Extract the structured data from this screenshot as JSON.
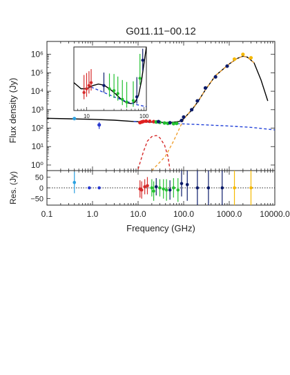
{
  "colors": {
    "frame": "#222222",
    "model": "#000000",
    "synchrotron": "#1f3fd8",
    "dust": "#f0a030",
    "free_free": "#d62a2a",
    "mwa": "#2aa0e0",
    "gleam": "#2a3ad0",
    "mid": "#e02020",
    "green": "#22c030",
    "navy": "#0a1a6a",
    "gold": "#f5b800"
  },
  "chart_data": [
    {
      "type": "scatter",
      "panel": "main",
      "title": "G011.11−00.12",
      "xlabel": "",
      "ylabel": "Flux density (Jy)",
      "xscale": "log",
      "yscale": "log",
      "xlim": [
        0.1,
        10000
      ],
      "ylim": [
        0.5,
        5000000
      ],
      "ytick_labels": [
        "10⁰",
        "10¹",
        "10²",
        "10³",
        "10⁴",
        "10⁵",
        "10⁶"
      ],
      "ytick_values": [
        1,
        10,
        100,
        1000,
        10000,
        100000,
        1000000
      ],
      "grid": false,
      "series": [
        {
          "group": "low_freq",
          "color": "#2aa0e0",
          "points": [
            {
              "x": 0.4,
              "y": 330,
              "yerr": 0
            }
          ]
        },
        {
          "group": "gleam",
          "color": "#2a3ad0",
          "points": [
            {
              "x": 1.4,
              "y": 150,
              "yerr": 60
            }
          ]
        },
        {
          "group": "mid",
          "color": "#e02020",
          "points": [
            {
              "x": 11,
              "y": 200
            },
            {
              "x": 12,
              "y": 215
            },
            {
              "x": 13,
              "y": 230
            },
            {
              "x": 15,
              "y": 240
            },
            {
              "x": 18,
              "y": 235
            },
            {
              "x": 22,
              "y": 225
            }
          ]
        },
        {
          "group": "green",
          "color": "#22c030",
          "points": [
            {
              "x": 25,
              "y": 215
            },
            {
              "x": 30,
              "y": 205
            },
            {
              "x": 38,
              "y": 190
            },
            {
              "x": 45,
              "y": 180
            },
            {
              "x": 60,
              "y": 175
            },
            {
              "x": 70,
              "y": 180
            }
          ]
        },
        {
          "group": "navy",
          "color": "#0a1a6a",
          "points": [
            {
              "x": 28,
              "y": 225
            },
            {
              "x": 50,
              "y": 195
            },
            {
              "x": 90,
              "y": 260
            },
            {
              "x": 100,
              "y": 400
            },
            {
              "x": 150,
              "y": 1000
            },
            {
              "x": 200,
              "y": 3000
            },
            {
              "x": 300,
              "y": 15000
            },
            {
              "x": 500,
              "y": 60000
            },
            {
              "x": 900,
              "y": 230000
            }
          ]
        },
        {
          "group": "gold",
          "color": "#f5b800",
          "points": [
            {
              "x": 1300,
              "y": 550000
            },
            {
              "x": 2000,
              "y": 1000000
            },
            {
              "x": 3000,
              "y": 650000
            }
          ]
        }
      ],
      "models": [
        {
          "name": "total",
          "color": "#000000",
          "dash": "solid",
          "points": [
            [
              0.1,
              340
            ],
            [
              0.3,
              320
            ],
            [
              1,
              300
            ],
            [
              3,
              270
            ],
            [
              8,
              230
            ],
            [
              15,
              215
            ],
            [
              30,
              205
            ],
            [
              50,
              200
            ],
            [
              80,
              230
            ],
            [
              100,
              320
            ],
            [
              150,
              950
            ],
            [
              200,
              2500
            ],
            [
              300,
              12000
            ],
            [
              500,
              70000
            ],
            [
              1000,
              300000
            ],
            [
              1500,
              600000
            ],
            [
              2000,
              800000
            ],
            [
              2500,
              700000
            ],
            [
              3500,
              350000
            ],
            [
              5000,
              40000
            ],
            [
              7000,
              3000
            ]
          ]
        },
        {
          "name": "synchrotron",
          "color": "#1f3fd8",
          "dash": "dashed",
          "points": [
            [
              8,
              230
            ],
            [
              30,
              190
            ],
            [
              100,
              170
            ],
            [
              300,
              150
            ],
            [
              1000,
              130
            ],
            [
              3000,
              110
            ],
            [
              10000,
              80
            ]
          ]
        },
        {
          "name": "dust",
          "color": "#f0a030",
          "dash": "dashed",
          "points": [
            [
              20,
              0.5
            ],
            [
              40,
              3
            ],
            [
              60,
              20
            ],
            [
              100,
              300
            ],
            [
              200,
              2500
            ],
            [
              300,
              12000
            ],
            [
              500,
              70000
            ],
            [
              1000,
              300000
            ],
            [
              1500,
              600000
            ],
            [
              2000,
              800000
            ],
            [
              2500,
              700000
            ],
            [
              3500,
              350000
            ]
          ]
        },
        {
          "name": "free_free",
          "color": "#d62a2a",
          "dash": "dashed",
          "points": [
            [
              10,
              0.6
            ],
            [
              13,
              5
            ],
            [
              16,
              20
            ],
            [
              20,
              35
            ],
            [
              25,
              40
            ],
            [
              30,
              30
            ],
            [
              38,
              12
            ],
            [
              45,
              3
            ],
            [
              50,
              0.6
            ]
          ]
        }
      ]
    },
    {
      "type": "scatter",
      "panel": "inset",
      "xscale": "log",
      "yscale": "log",
      "xlim": [
        6,
        110
      ],
      "ylim": [
        130,
        1500
      ],
      "xtick_labels": [
        "10",
        "100"
      ],
      "xtick_values": [
        10,
        100
      ],
      "points": [
        {
          "x": 9,
          "y": 260,
          "yerr_lo": 60,
          "yerr_hi": 250,
          "color": "#d62a2a"
        },
        {
          "x": 10,
          "y": 300,
          "yerr_lo": 80,
          "yerr_hi": 250,
          "color": "#d62a2a"
        },
        {
          "x": 11,
          "y": 340,
          "yerr_lo": 90,
          "yerr_hi": 250,
          "color": "#d62a2a"
        },
        {
          "x": 12,
          "y": 380,
          "yerr_lo": 100,
          "yerr_hi": 260,
          "color": "#d62a2a"
        },
        {
          "x": 20,
          "y": 340,
          "yerr_lo": 80,
          "yerr_hi": 220,
          "color": "#0a1a6a"
        },
        {
          "x": 25,
          "y": 300,
          "yerr_lo": 80,
          "yerr_hi": 240,
          "color": "#22c030"
        },
        {
          "x": 30,
          "y": 280,
          "yerr_lo": 70,
          "yerr_hi": 250,
          "color": "#22c030"
        },
        {
          "x": 35,
          "y": 250,
          "yerr_lo": 60,
          "yerr_hi": 230,
          "color": "#22c030"
        },
        {
          "x": 42,
          "y": 200,
          "yerr_lo": 40,
          "yerr_hi": 220,
          "color": "#22c030"
        },
        {
          "x": 50,
          "y": 180,
          "yerr_lo": 35,
          "yerr_hi": 210,
          "color": "#22c030"
        },
        {
          "x": 65,
          "y": 190,
          "yerr_lo": 40,
          "yerr_hi": 210,
          "color": "#22c030"
        },
        {
          "x": 75,
          "y": 220,
          "yerr_lo": 50,
          "yerr_hi": 250,
          "color": "#0a1a6a"
        },
        {
          "x": 85,
          "y": 450,
          "yerr_lo": 100,
          "yerr_hi": 700,
          "color": "#22c030"
        },
        {
          "x": 95,
          "y": 900,
          "yerr_lo": 300,
          "yerr_hi": 500,
          "color": "#0a1a6a"
        }
      ],
      "models": [
        {
          "name": "total",
          "color": "#000000",
          "dash": "solid",
          "points": [
            [
              6,
              380
            ],
            [
              8,
              300
            ],
            [
              10,
              300
            ],
            [
              13,
              340
            ],
            [
              16,
              360
            ],
            [
              20,
              345
            ],
            [
              25,
              300
            ],
            [
              30,
              260
            ],
            [
              40,
              200
            ],
            [
              50,
              175
            ],
            [
              60,
              170
            ],
            [
              70,
              180
            ],
            [
              80,
              230
            ],
            [
              90,
              400
            ],
            [
              100,
              800
            ],
            [
              110,
              1500
            ]
          ]
        },
        {
          "name": "synchrotron",
          "color": "#1f3fd8",
          "dash": "dashed",
          "points": [
            [
              12,
              320
            ],
            [
              20,
              260
            ],
            [
              30,
              220
            ],
            [
              45,
              190
            ],
            [
              70,
              165
            ],
            [
              110,
              150
            ]
          ]
        }
      ]
    },
    {
      "type": "scatter",
      "panel": "residuals",
      "xlabel": "Frequency (GHz)",
      "ylabel": "Res. (Jy)",
      "xscale": "log",
      "xlim": [
        0.1,
        10000
      ],
      "ylim": [
        -80,
        80
      ],
      "xtick_labels": [
        "0.1",
        "1.0",
        "10.0",
        "100.0",
        "1000.0",
        "10000.0"
      ],
      "xtick_values": [
        0.1,
        1,
        10,
        100,
        1000,
        10000
      ],
      "ytick_labels": [
        "50",
        "0",
        "−50"
      ],
      "ytick_values": [
        50,
        0,
        -50
      ],
      "zero_line": "dotted",
      "points": [
        {
          "x": 0.4,
          "y": 25,
          "yerr": 50,
          "color": "#2aa0e0"
        },
        {
          "x": 0.85,
          "y": 0,
          "yerr": 0,
          "color": "#2a3ad0"
        },
        {
          "x": 1.4,
          "y": 0,
          "yerr": 0,
          "color": "#2a3ad0"
        },
        {
          "x": 11,
          "y": -5,
          "yerr": 40,
          "color": "#d62a2a"
        },
        {
          "x": 12,
          "y": -10,
          "yerr": 40,
          "color": "#d62a2a"
        },
        {
          "x": 14,
          "y": 5,
          "yerr": 35,
          "color": "#d62a2a"
        },
        {
          "x": 16,
          "y": 10,
          "yerr": 40,
          "color": "#d62a2a"
        },
        {
          "x": 20,
          "y": 0,
          "yerr": 40,
          "color": "#22c030"
        },
        {
          "x": 22,
          "y": -15,
          "yerr": 45,
          "color": "#22c030"
        },
        {
          "x": 25,
          "y": 5,
          "yerr": 40,
          "color": "#0a1a6a"
        },
        {
          "x": 30,
          "y": 0,
          "yerr": 40,
          "color": "#22c030"
        },
        {
          "x": 36,
          "y": -5,
          "yerr": 45,
          "color": "#22c030"
        },
        {
          "x": 42,
          "y": -10,
          "yerr": 50,
          "color": "#22c030"
        },
        {
          "x": 50,
          "y": -10,
          "yerr": 45,
          "color": "#0a1a6a"
        },
        {
          "x": 60,
          "y": 0,
          "yerr": 45,
          "color": "#22c030"
        },
        {
          "x": 75,
          "y": -10,
          "yerr": 55,
          "color": "#22c030"
        },
        {
          "x": 90,
          "y": 20,
          "yerr": 60,
          "color": "#0a1a6a"
        },
        {
          "x": 120,
          "y": 15,
          "yerr": 75,
          "color": "#0a1a6a"
        },
        {
          "x": 200,
          "y": 0,
          "yerr": 80,
          "color": "#0a1a6a"
        },
        {
          "x": 350,
          "y": 0,
          "yerr": 80,
          "color": "#0a1a6a"
        },
        {
          "x": 700,
          "y": 0,
          "yerr": 80,
          "color": "#0a1a6a"
        },
        {
          "x": 1300,
          "y": 0,
          "yerr": 80,
          "color": "#f5b800"
        },
        {
          "x": 3000,
          "y": 0,
          "yerr": 80,
          "color": "#f5b800"
        }
      ]
    }
  ]
}
